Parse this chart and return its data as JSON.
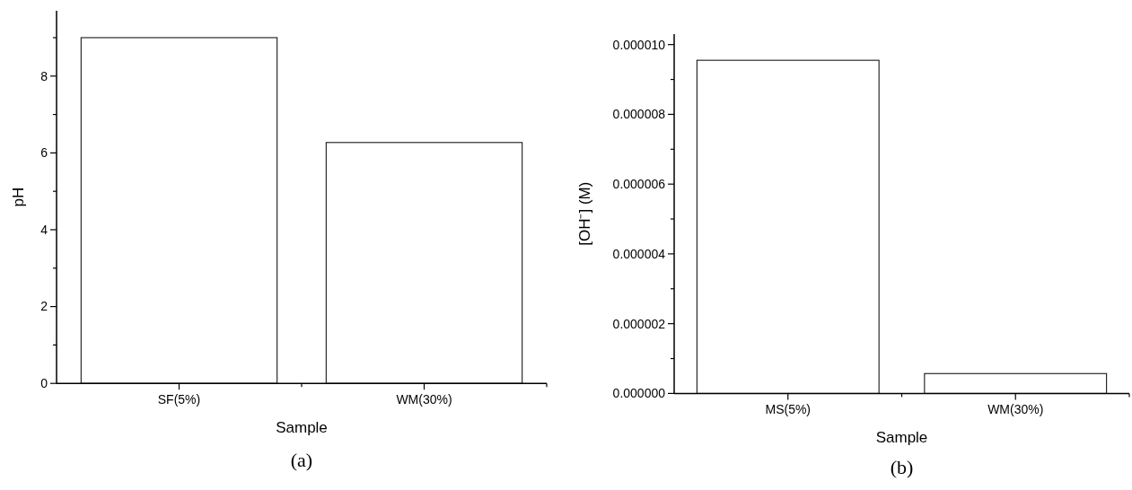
{
  "chart_data": [
    {
      "type": "bar",
      "xlabel": "Sample",
      "ylabel": "pH",
      "categories": [
        "SF(5%)",
        "WM(30%)"
      ],
      "values": [
        9.0,
        6.27
      ],
      "color": "#ffffff",
      "ylim": [
        0,
        9.7
      ],
      "yticks": [
        0,
        {
          "value": 1,
          "label": null
        },
        2,
        {
          "value": 3,
          "label": null
        },
        4,
        {
          "value": 5,
          "label": null
        },
        6,
        {
          "value": 7,
          "label": null
        },
        8,
        {
          "value": 9,
          "label": null
        }
      ],
      "grid": false,
      "annotations": [
        "(a)"
      ]
    },
    {
      "type": "bar",
      "xlabel": "Sample",
      "ylabel": "[OH⁻] (M)",
      "categories": [
        "MS(5%)",
        "WM(30%)"
      ],
      "values": [
        9.55e-06,
        5.7e-07
      ],
      "color": "#ffffff",
      "ylim": [
        0,
        1.03e-05
      ],
      "yticks": [
        {
          "value": 0,
          "label": "0.000000"
        },
        {
          "value": 1e-06,
          "label": null
        },
        {
          "value": 2e-06,
          "label": "0.000002"
        },
        {
          "value": 3e-06,
          "label": null
        },
        {
          "value": 4e-06,
          "label": "0.000004"
        },
        {
          "value": 5e-06,
          "label": null
        },
        {
          "value": 6e-06,
          "label": "0.000006"
        },
        {
          "value": 7e-06,
          "label": null
        },
        {
          "value": 8e-06,
          "label": "0.000008"
        },
        {
          "value": 9e-06,
          "label": null
        },
        {
          "value": 1e-05,
          "label": "0.000010"
        }
      ],
      "grid": false,
      "annotations": [
        "(b)"
      ]
    }
  ]
}
